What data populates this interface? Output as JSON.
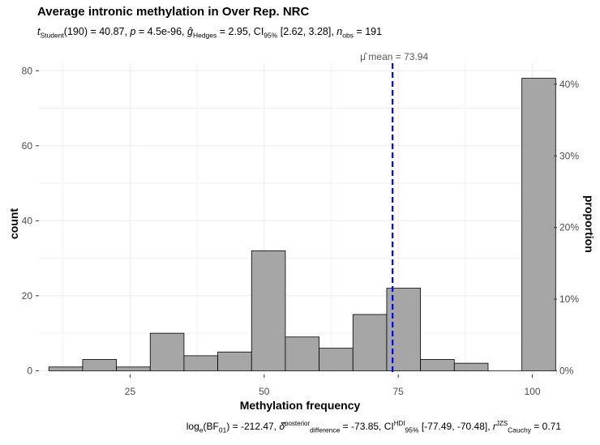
{
  "chart_data": {
    "type": "bar",
    "title": "Average intronic methylation in Over Rep. NRC",
    "subtitle": "t Student (190) = 40.87, p = 4.5e-96, ĝ Hedges = 2.95, CI 95% [2.62, 3.28], n obs = 191",
    "caption": "log e (BF 01 ) = -212.47, δ̂ posterior difference = -73.85, CI HDI 95% [-77.49, -70.48], r JZS Cauchy = 0.71",
    "xlabel": "Methylation frequency",
    "ylabel": "count",
    "ylabel_right": "proportion",
    "mean_label": "μ̂ mean = 73.94",
    "mean": 73.94,
    "bin_width": 6.3,
    "bins": [
      {
        "center": 13.0,
        "count": 1
      },
      {
        "center": 19.3,
        "count": 3
      },
      {
        "center": 25.6,
        "count": 1
      },
      {
        "center": 31.9,
        "count": 10
      },
      {
        "center": 38.2,
        "count": 4
      },
      {
        "center": 44.5,
        "count": 5
      },
      {
        "center": 50.8,
        "count": 32
      },
      {
        "center": 57.1,
        "count": 9
      },
      {
        "center": 63.4,
        "count": 6
      },
      {
        "center": 69.7,
        "count": 15
      },
      {
        "center": 76.0,
        "count": 22
      },
      {
        "center": 82.3,
        "count": 3
      },
      {
        "center": 88.6,
        "count": 2
      },
      {
        "center": 94.9,
        "count": 0
      },
      {
        "center": 101.2,
        "count": 78
      }
    ],
    "xlim": [
      8,
      104
    ],
    "ylim": [
      -1,
      82
    ],
    "x_ticks": [
      25,
      50,
      75,
      100
    ],
    "y_ticks": [
      0,
      20,
      40,
      60,
      80
    ],
    "y2_ticks": [
      "0%",
      "10%",
      "20%",
      "30%",
      "40%"
    ],
    "y2_tick_counts": [
      0,
      19.1,
      38.2,
      57.3,
      76.4
    ],
    "grid": true,
    "colors": {
      "bar_fill": "#a6a6a6",
      "bar_stroke": "#000000",
      "mean_line": "#0000ff",
      "grid": "#ebebeb",
      "axis_text": "#4d4d4d"
    }
  }
}
